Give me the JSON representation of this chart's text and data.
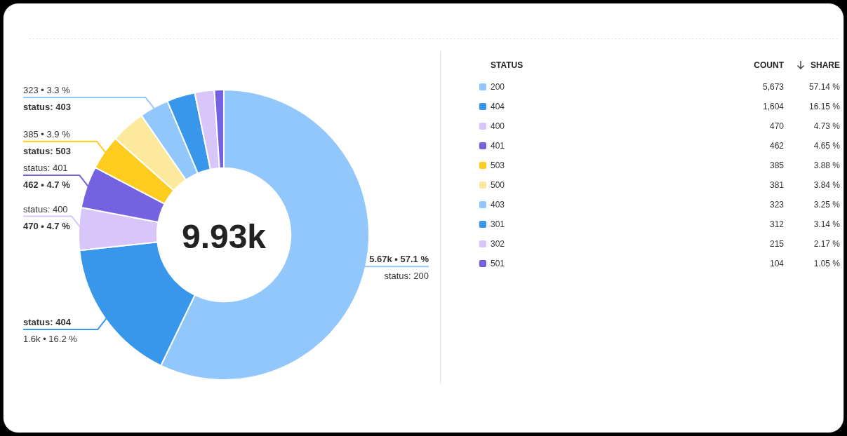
{
  "chart_data": {
    "type": "donut",
    "categories": [
      "200",
      "404",
      "400",
      "401",
      "503",
      "500",
      "403",
      "301",
      "302",
      "501"
    ],
    "values": [
      5673,
      1604,
      470,
      462,
      385,
      381,
      323,
      312,
      215,
      104
    ],
    "colors": [
      "#92c7fc",
      "#3897ea",
      "#d8c6fa",
      "#7562e0",
      "#fdcc1e",
      "#fde99b",
      "#92c7fc",
      "#3897ea",
      "#d8c6fa",
      "#7562e0"
    ],
    "value_labels": [
      "5.67k • 57.1 %\nstatus: 200",
      "status: 404\n1.6k • 16.2 %",
      "status: 400\n470 • 4.7 %",
      "status: 401\n462 • 4.7 %",
      "385 • 3.9 %\nstatus: 503",
      null,
      "323 • 3.3 %\nstatus: 403",
      null,
      null,
      null
    ],
    "legend": "right",
    "legend_title": "STATUS",
    "annotations": [
      "9.93k",
      "COUNT",
      "SHARE",
      {
        "text": "5,673",
        "x": "200"
      },
      {
        "text": "1,604",
        "x": "404"
      },
      {
        "text": "470",
        "x": "400"
      },
      {
        "text": "462",
        "x": "401"
      },
      {
        "text": "385",
        "x": "503"
      },
      {
        "text": "381",
        "x": "500"
      },
      {
        "text": "323",
        "x": "403"
      },
      {
        "text": "312",
        "x": "301"
      },
      {
        "text": "215",
        "x": "302"
      },
      {
        "text": "104",
        "x": "501"
      },
      {
        "text": "57.14 %",
        "x": "200"
      },
      {
        "text": "16.15 %",
        "x": "404"
      },
      {
        "text": "4.73 %",
        "x": "400"
      },
      {
        "text": "4.65 %",
        "x": "401"
      },
      {
        "text": "3.88 %",
        "x": "503"
      },
      {
        "text": "3.84 %",
        "x": "500"
      },
      {
        "text": "3.25 %",
        "x": "403"
      },
      {
        "text": "3.14 %",
        "x": "301"
      },
      {
        "text": "2.17 %",
        "x": "302"
      },
      {
        "text": "1.05 %",
        "x": "501"
      }
    ]
  }
}
